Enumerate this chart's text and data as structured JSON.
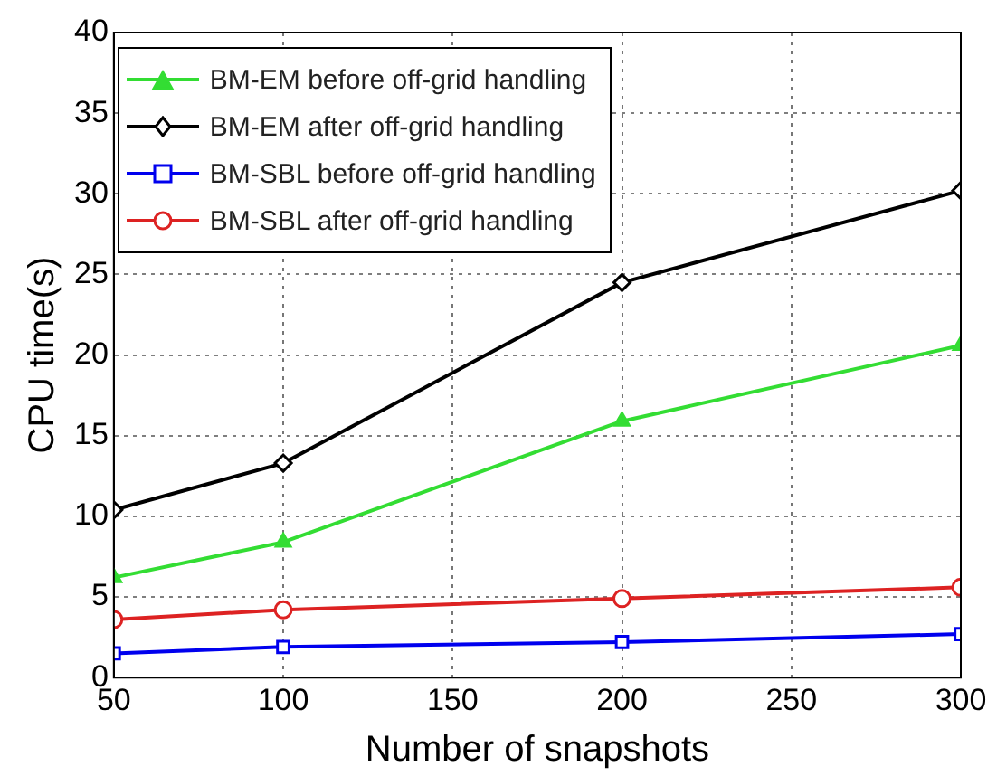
{
  "chart_data": {
    "type": "line",
    "xlabel": "Number of snapshots",
    "ylabel": "CPU time(s)",
    "x": [
      50,
      100,
      200,
      300
    ],
    "series": [
      {
        "name": "BM-EM before off-grid handling",
        "color": "#33dd33",
        "marker": "triangle",
        "values": [
          6.2,
          8.4,
          15.9,
          20.6
        ]
      },
      {
        "name": "BM-EM after off-grid handling",
        "color": "#000000",
        "marker": "diamond",
        "values": [
          10.4,
          13.3,
          24.5,
          30.2
        ]
      },
      {
        "name": "BM-SBL before off-grid handling",
        "color": "#0000ee",
        "marker": "square",
        "values": [
          1.5,
          1.9,
          2.2,
          2.7
        ]
      },
      {
        "name": "BM-SBL after off-grid handling",
        "color": "#dd2222",
        "marker": "circle",
        "values": [
          3.6,
          4.2,
          4.9,
          5.6
        ]
      }
    ],
    "xlim": [
      50,
      300
    ],
    "xticks": [
      50,
      100,
      150,
      200,
      250,
      300
    ],
    "ylim": [
      0,
      40
    ],
    "yticks": [
      0,
      5,
      10,
      15,
      20,
      25,
      30,
      35,
      40
    ],
    "grid": true,
    "legend": "top left",
    "line_style": "solid"
  }
}
